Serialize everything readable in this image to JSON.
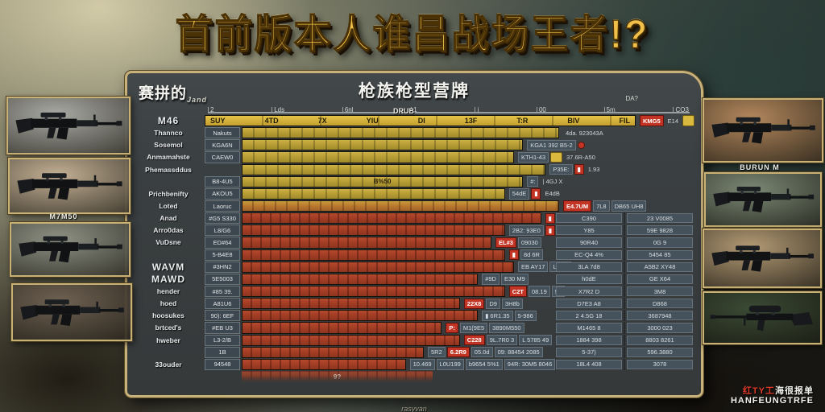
{
  "title": "首前版本人谁昌战场王者!?",
  "panel": {
    "left_header": "赛拼的",
    "left_header_script": "Jand",
    "title": "枪族枪型营牌",
    "axis": {
      "ticks": [
        "2",
        "Lds",
        "6nl",
        "1",
        "i",
        "00",
        "5m",
        "CO3"
      ],
      "center_label": "DRUB",
      "right_label": "DA?"
    },
    "footer": "rasyvan"
  },
  "rows": [
    {
      "wlabel": "M46",
      "big": true,
      "chip": "",
      "barColor": "header",
      "barPct": 100,
      "headerCells": [
        "SUY",
        "4TD",
        "7X",
        "YIU",
        "DI",
        "13F",
        "T:R",
        "BIV",
        "FIL"
      ],
      "cells": [
        {
          "t": "KMG5",
          "c": "red"
        },
        {
          "t": "E14",
          "c": "text"
        },
        {
          "t": "",
          "c": "yellow"
        }
      ]
    },
    {
      "wlabel": "Thannco",
      "chip": "Nakuts",
      "barColor": "yellow",
      "barPct": 70,
      "cells": [
        {
          "t": "4da. 923043A",
          "c": "text"
        }
      ]
    },
    {
      "wlabel": "Sosemol",
      "chip": "KGA6N",
      "barColor": "yellow",
      "barPct": 62,
      "cells": [
        {
          "t": "KGA1 392 B5-2",
          "c": "vcell"
        },
        {
          "t": "",
          "c": "dot"
        }
      ]
    },
    {
      "wlabel": "Anmamahste",
      "chip": "CAEW0",
      "barColor": "yellow",
      "barPct": 60,
      "cells": [
        {
          "t": "KTH1-43",
          "c": "vcell"
        },
        {
          "t": "",
          "c": "yellow"
        },
        {
          "t": "37.6R-A50",
          "c": "text"
        }
      ]
    },
    {
      "wlabel": "Phemassddus",
      "chip": "",
      "barColor": "yellow",
      "barPct": 67,
      "cells": [
        {
          "t": "P35E:",
          "c": "vcell"
        },
        {
          "t": "▮",
          "c": "red"
        },
        {
          "t": "1.93",
          "c": "text"
        }
      ]
    },
    {
      "wlabel": "",
      "chip": "B8-4U5",
      "barColor": "yellow",
      "barPct": 62,
      "barText": "B%50",
      "cells": [
        {
          "t": "#:",
          "c": "vcell"
        },
        {
          "t": "| 4GJ X",
          "c": "text"
        }
      ]
    },
    {
      "wlabel": "Prichbenifty",
      "chip": "AKOU5",
      "barColor": "yellow",
      "barPct": 58,
      "cells": [
        {
          "t": "54dE",
          "c": "vcell"
        },
        {
          "t": "▮",
          "c": "red"
        },
        {
          "t": "E4dB",
          "c": "text"
        }
      ]
    },
    {
      "wlabel": "Loted",
      "chip": "Laoruc",
      "barColor": "orange",
      "barPct": 70,
      "cells": [
        {
          "t": "E4.7UM",
          "c": "red"
        },
        {
          "t": "7L8",
          "c": "vcell"
        },
        {
          "t": "DB65 UH8",
          "c": "vcell"
        }
      ]
    },
    {
      "wlabel": "Anad",
      "chip": "#G5 S330",
      "barColor": "red",
      "barPct": 66,
      "cells": [
        {
          "t": "▮",
          "c": "red"
        }
      ],
      "right": [
        "C390",
        "23 V0085"
      ]
    },
    {
      "wlabel": "Arro0das",
      "chip": "L8/G6",
      "barColor": "red",
      "barPct": 58,
      "cells": [
        {
          "t": "2B2: 93E0",
          "c": "vcell"
        },
        {
          "t": "▮",
          "c": "red"
        }
      ],
      "right": [
        "Y85",
        "59E 9828"
      ]
    },
    {
      "wlabel": "VuDsne",
      "chip": "ED#64",
      "barColor": "red",
      "barPct": 55,
      "cells": [
        {
          "t": "EL#3",
          "c": "red"
        },
        {
          "t": "09030",
          "c": "vcell"
        }
      ],
      "right": [
        "90R40",
        "0G 9"
      ]
    },
    {
      "wlabel": "",
      "chip": "5-B4E8",
      "barColor": "red",
      "barPct": 58,
      "cells": [
        {
          "t": "▮",
          "c": "red"
        },
        {
          "t": "8d 6R",
          "c": "vcell"
        }
      ],
      "right": [
        "EC-Q4 4%",
        "5454 85"
      ]
    },
    {
      "wlabel": "WAVM",
      "big": true,
      "chip": "#3HN2",
      "barColor": "red",
      "barPct": 60,
      "cells": [
        {
          "t": "EB AY17",
          "c": "vcell"
        },
        {
          "t": "L3f23",
          "c": "vcell"
        }
      ],
      "right": [
        "3LA 7d8",
        "A5B2 XY48"
      ]
    },
    {
      "wlabel": "MAWD",
      "big": true,
      "chip": "5E5003",
      "barColor": "red",
      "barPct": 52,
      "cells": [
        {
          "t": "#9D",
          "c": "vcell"
        },
        {
          "t": "E30 M9",
          "c": "vcell"
        }
      ],
      "right": [
        "h0dE",
        "GE X64"
      ]
    },
    {
      "wlabel": "hender",
      "chip": "#85 39.",
      "barColor": "red",
      "barPct": 58,
      "cells": [
        {
          "t": "C2T",
          "c": "red"
        },
        {
          "t": "08.19",
          "c": "vcell"
        },
        {
          "t": "9L",
          "c": "vcell"
        }
      ],
      "right": [
        "X7R2 D",
        "3M8"
      ]
    },
    {
      "wlabel": "hoed",
      "chip": "A81U6",
      "barColor": "red",
      "barPct": 48,
      "cells": [
        {
          "t": "22X8",
          "c": "red"
        },
        {
          "t": "D9",
          "c": "vcell"
        },
        {
          "t": "3H8b",
          "c": "vcell"
        }
      ],
      "right": [
        "D7E3 A8",
        "D868"
      ]
    },
    {
      "wlabel": "hoosukes",
      "chip": "90): 6EF",
      "barColor": "red",
      "barPct": 52,
      "cells": [
        {
          "t": "▮ 6R1.35",
          "c": "vcell"
        },
        {
          "t": "5-986",
          "c": "vcell"
        }
      ],
      "right": [
        "2 4.5G 18",
        "3687948"
      ]
    },
    {
      "wlabel": "brtced's",
      "chip": "#EB U3",
      "barColor": "red",
      "barPct": 44,
      "cells": [
        {
          "t": "P:",
          "c": "red"
        },
        {
          "t": "M1(9E5",
          "c": "vcell"
        },
        {
          "t": "3890M550",
          "c": "vcell"
        }
      ],
      "right": [
        "M1465 8",
        "3000 023"
      ]
    },
    {
      "wlabel": "hweber",
      "chip": "L3-2/B",
      "barColor": "red",
      "barPct": 48,
      "cells": [
        {
          "t": "C228",
          "c": "red"
        },
        {
          "t": "9L.7R0 3",
          "c": "vcell"
        },
        {
          "t": "L 5785 49",
          "c": "vcell"
        }
      ],
      "right": [
        "1884 398",
        "8803 8261"
      ]
    },
    {
      "wlabel": "",
      "chip": "1B",
      "barColor": "red",
      "barPct": 40,
      "cells": [
        {
          "t": "5R2",
          "c": "vcell"
        },
        {
          "t": "6.2R9",
          "c": "red"
        },
        {
          "t": "05.0d",
          "c": "vcell"
        },
        {
          "t": "09: 88454 2085",
          "c": "vcell"
        }
      ],
      "right": [
        "5-37)",
        "596.3880"
      ]
    },
    {
      "wlabel": "33ouder",
      "chip": "94548",
      "barColor": "red",
      "barPct": 36,
      "cells": [
        {
          "t": "10.469",
          "c": "vcell"
        },
        {
          "t": "L0U199",
          "c": "vcell"
        },
        {
          "t": "b9654 5%1",
          "c": "vcell"
        },
        {
          "t": "94R: 30M5 8046",
          "c": "vcell"
        }
      ],
      "right": [
        "18L4 408",
        "3078"
      ]
    },
    {
      "wlabel": "",
      "chip": "",
      "barColor": "fade",
      "barPct": 42,
      "barText": "9?",
      "cells": []
    }
  ],
  "left_guns": {
    "label": "M7M50",
    "cards": [
      {
        "name": "rifle-scoped",
        "bg": "#a9aaa4"
      },
      {
        "name": "rifle-carbine",
        "bg": "#c3b094"
      },
      {
        "name": "rifle-compact",
        "bg": "#8f9285"
      },
      {
        "name": "rifle-m4",
        "bg": "#6e6152"
      }
    ]
  },
  "right_guns": {
    "label": "BURUN M",
    "cards": [
      {
        "name": "rifle-long",
        "bg": "#b3875c"
      },
      {
        "name": "rifle-folding",
        "bg": "#7b8874"
      },
      {
        "name": "rifle-magfed",
        "bg": "#b39a74"
      },
      {
        "name": "sniper-scoped",
        "bg": "#3a4a34"
      }
    ]
  },
  "watermark": {
    "line1_red": "红TY工",
    "line1_white": "海很报单",
    "line2": "HANFEUNGTRFE"
  },
  "colors": {
    "accent_gold": "#e8b944",
    "bar_yellow": "#c0a438",
    "bar_red": "#a73f26",
    "panel_border": "#c9b279",
    "badge_red": "#c23524"
  }
}
